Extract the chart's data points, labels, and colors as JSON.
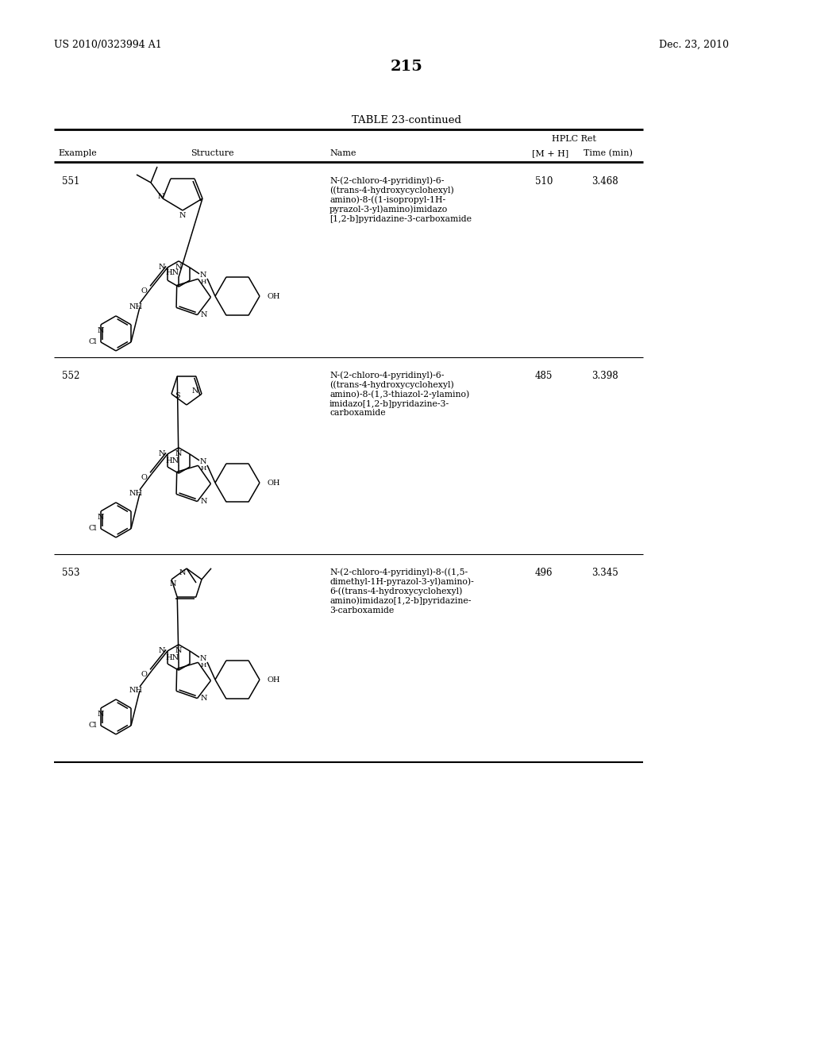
{
  "page_number": "215",
  "patent_number": "US 2010/0323994 A1",
  "patent_date": "Dec. 23, 2010",
  "table_title": "TABLE 23-continued",
  "bg_color": "#ffffff",
  "rows": [
    {
      "example": "551",
      "name": "N-(2-chloro-4-pyridinyl)-6-\n((trans-4-hydroxycyclohexyl)\namino)-8-((1-isopropyl-1H-\npyrazol-3-yl)amino)imidazo\n[1,2-b]pyridazine-3-carboxamide",
      "mh": "510",
      "time": "3.468"
    },
    {
      "example": "552",
      "name": "N-(2-chloro-4-pyridinyl)-6-\n((trans-4-hydroxycyclohexyl)\namino)-8-(1,3-thiazol-2-ylamino)\nimidazo[1,2-b]pyridazine-3-\ncarboxamide",
      "mh": "485",
      "time": "3.398"
    },
    {
      "example": "553",
      "name": "N-(2-chloro-4-pyridinyl)-8-((1,5-\ndimethyl-1H-pyrazol-3-yl)amino)-\n6-((trans-4-hydroxycyclohexyl)\namino)imidazo[1,2-b]pyridazine-\n3-carboxamide",
      "mh": "496",
      "time": "3.345"
    }
  ]
}
